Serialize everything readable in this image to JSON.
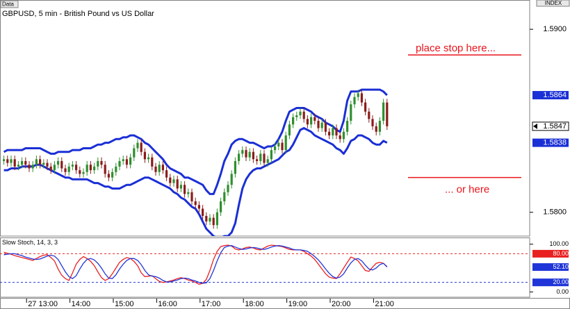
{
  "chart_data": [
    {
      "type": "candlestick",
      "label": "Data",
      "title": "GBPUSD, 5 min - British Pound vs US Dollar",
      "axis_label": "INDEX",
      "categories": [
        null,
        null,
        null,
        null,
        null,
        null,
        null,
        null,
        "27 13:00",
        null,
        null,
        null,
        null,
        null,
        null,
        null,
        null,
        null,
        null,
        null,
        "14:00",
        null,
        null,
        null,
        null,
        null,
        null,
        null,
        null,
        null,
        null,
        null,
        "15:00",
        null,
        null,
        null,
        null,
        null,
        null,
        null,
        null,
        null,
        null,
        null,
        "16:00",
        null,
        null,
        null,
        null,
        null,
        null,
        null,
        null,
        null,
        null,
        null,
        "17:00",
        null,
        null,
        null,
        null,
        null,
        null,
        null,
        null,
        null,
        null,
        null,
        "18:00",
        null,
        null,
        null,
        null,
        null,
        null,
        null,
        null,
        null,
        null,
        null,
        "19:00",
        null,
        null,
        null,
        null,
        null,
        null,
        null,
        null,
        null,
        null,
        null,
        "20:00",
        null,
        null,
        null,
        null,
        null,
        null,
        null,
        null,
        null,
        null,
        null,
        "21:00",
        null,
        null
      ],
      "open": [
        1.5828,
        1.5829,
        1.5827,
        1.5829,
        1.5825,
        1.5826,
        1.5828,
        1.5826,
        1.5824,
        1.5826,
        1.5829,
        1.5826,
        1.5827,
        1.5825,
        1.5823,
        1.5826,
        1.5828,
        1.5824,
        1.5822,
        1.5825,
        1.5826,
        1.5823,
        1.5821,
        1.5822,
        1.5826,
        1.5823,
        1.5825,
        1.5828,
        1.5826,
        1.5821,
        1.5819,
        1.5822,
        1.5825,
        1.5828,
        1.5829,
        1.5826,
        1.583,
        1.5835,
        1.5838,
        1.5833,
        1.5829,
        1.583,
        1.5825,
        1.5822,
        1.5826,
        1.5823,
        1.5819,
        1.5816,
        1.5818,
        1.5813,
        1.5815,
        1.581,
        1.5811,
        1.5806,
        1.5804,
        1.5802,
        1.5798,
        1.5795,
        1.5797,
        1.5793,
        1.58,
        1.5806,
        1.5811,
        1.5815,
        1.5821,
        1.5828,
        1.5832,
        1.5834,
        1.583,
        1.5833,
        1.5829,
        1.5828,
        1.5832,
        1.5827,
        1.5829,
        1.5834,
        1.5836,
        1.5838,
        1.5834,
        1.5842,
        1.5848,
        1.5852,
        1.5853,
        1.5855,
        1.5851,
        1.5848,
        1.5852,
        1.585,
        1.5846,
        1.5849,
        1.5844,
        1.5842,
        1.5846,
        1.5842,
        1.584,
        1.5844,
        1.585,
        1.5859,
        1.5863,
        1.5865,
        1.586,
        1.5855,
        1.5851,
        1.5847,
        1.5844,
        1.585,
        1.586
      ],
      "high": [
        1.5831,
        1.5831,
        1.5831,
        1.5831,
        1.5828,
        1.583,
        1.583,
        1.5828,
        1.5828,
        1.5831,
        1.5831,
        1.5829,
        1.5829,
        1.5827,
        1.5828,
        1.583,
        1.583,
        1.5826,
        1.5827,
        1.5828,
        1.5828,
        1.5825,
        1.5824,
        1.5828,
        1.5828,
        1.5827,
        1.583,
        1.583,
        1.5828,
        1.5823,
        1.5824,
        1.5827,
        1.583,
        1.5831,
        1.5831,
        1.5832,
        1.5837,
        1.584,
        1.584,
        1.5835,
        1.5832,
        1.5832,
        1.5827,
        1.5828,
        1.5828,
        1.5825,
        1.5821,
        1.582,
        1.582,
        1.5817,
        1.5817,
        1.5813,
        1.5813,
        1.5808,
        1.5806,
        1.5804,
        1.58,
        1.5799,
        1.5799,
        1.5802,
        1.5808,
        1.5813,
        1.5817,
        1.5823,
        1.583,
        1.5834,
        1.5836,
        1.5836,
        1.5835,
        1.5835,
        1.5831,
        1.5834,
        1.5834,
        1.5831,
        1.5836,
        1.5838,
        1.584,
        1.584,
        1.5844,
        1.585,
        1.5854,
        1.5855,
        1.5857,
        1.5857,
        1.5853,
        1.5854,
        1.5854,
        1.5852,
        1.5851,
        1.5851,
        1.5846,
        1.5848,
        1.5848,
        1.5844,
        1.5846,
        1.5852,
        1.5861,
        1.5865,
        1.5867,
        1.5867,
        1.5862,
        1.5857,
        1.5853,
        1.5849,
        1.5852,
        1.5862,
        1.5862
      ],
      "low": [
        1.5826,
        1.5825,
        1.5825,
        1.5823,
        1.5823,
        1.5824,
        1.5824,
        1.5822,
        1.5822,
        1.5824,
        1.5824,
        1.5824,
        1.5823,
        1.5821,
        1.5821,
        1.5824,
        1.5822,
        1.582,
        1.582,
        1.5823,
        1.5821,
        1.5819,
        1.5819,
        1.582,
        1.5821,
        1.5821,
        1.5823,
        1.5824,
        1.5819,
        1.5817,
        1.5817,
        1.582,
        1.5823,
        1.5826,
        1.5824,
        1.5824,
        1.5828,
        1.5833,
        1.5831,
        1.5827,
        1.5827,
        1.5823,
        1.582,
        1.582,
        1.5821,
        1.5817,
        1.5814,
        1.5814,
        1.5811,
        1.5811,
        1.5808,
        1.5808,
        1.5804,
        1.5802,
        1.58,
        1.5796,
        1.5793,
        1.5793,
        1.5791,
        1.5791,
        1.5798,
        1.5804,
        1.5809,
        1.5813,
        1.5819,
        1.5826,
        1.583,
        1.5828,
        1.5828,
        1.5827,
        1.5826,
        1.5826,
        1.5825,
        1.5825,
        1.5827,
        1.5832,
        1.5834,
        1.5832,
        1.5832,
        1.584,
        1.5846,
        1.585,
        1.5851,
        1.5849,
        1.5846,
        1.5846,
        1.5848,
        1.5844,
        1.5844,
        1.5842,
        1.584,
        1.584,
        1.584,
        1.5838,
        1.5838,
        1.5842,
        1.5848,
        1.5857,
        1.5861,
        1.5858,
        1.5853,
        1.5849,
        1.5845,
        1.5842,
        1.5842,
        1.5848,
        1.5845
      ],
      "close": [
        1.5829,
        1.5827,
        1.5829,
        1.5825,
        1.5826,
        1.5828,
        1.5826,
        1.5824,
        1.5826,
        1.5829,
        1.5826,
        1.5827,
        1.5825,
        1.5823,
        1.5826,
        1.5828,
        1.5824,
        1.5822,
        1.5825,
        1.5826,
        1.5823,
        1.5821,
        1.5822,
        1.5826,
        1.5823,
        1.5825,
        1.5828,
        1.5826,
        1.5821,
        1.5819,
        1.5822,
        1.5825,
        1.5828,
        1.5829,
        1.5826,
        1.583,
        1.5835,
        1.5838,
        1.5833,
        1.5829,
        1.583,
        1.5825,
        1.5822,
        1.5826,
        1.5823,
        1.5819,
        1.5816,
        1.5818,
        1.5813,
        1.5815,
        1.581,
        1.5811,
        1.5806,
        1.5804,
        1.5802,
        1.5798,
        1.5795,
        1.5797,
        1.5793,
        1.58,
        1.5806,
        1.5811,
        1.5815,
        1.5821,
        1.5828,
        1.5832,
        1.5834,
        1.583,
        1.5833,
        1.5829,
        1.5828,
        1.5832,
        1.5827,
        1.5829,
        1.5834,
        1.5836,
        1.5838,
        1.5834,
        1.5842,
        1.5848,
        1.5852,
        1.5853,
        1.5855,
        1.5851,
        1.5848,
        1.5852,
        1.585,
        1.5846,
        1.5849,
        1.5844,
        1.5842,
        1.5846,
        1.5842,
        1.584,
        1.5844,
        1.585,
        1.5859,
        1.5863,
        1.5865,
        1.586,
        1.5855,
        1.5851,
        1.5847,
        1.5844,
        1.585,
        1.586,
        1.5847
      ],
      "up_color": "#2f8f2f",
      "down_color": "#8a1c1c",
      "bands": {
        "color": "#1a2fd6",
        "upper": [
          1.5833,
          1.5834,
          1.5834,
          1.5834,
          1.5834,
          1.5834,
          1.5835,
          1.5835,
          1.5835,
          1.5835,
          1.5835,
          1.5834,
          1.5833,
          1.5832,
          1.5832,
          1.5833,
          1.5833,
          1.5833,
          1.5833,
          1.5834,
          1.5834,
          1.5834,
          1.5835,
          1.5835,
          1.5835,
          1.5836,
          1.5837,
          1.5837,
          1.5838,
          1.5838,
          1.5839,
          1.584,
          1.584,
          1.5841,
          1.5841,
          1.5842,
          1.5842,
          1.5841,
          1.584,
          1.5838,
          1.5837,
          1.5835,
          1.5833,
          1.5831,
          1.5829,
          1.5826,
          1.5824,
          1.5823,
          1.5822,
          1.5821,
          1.5819,
          1.5819,
          1.5818,
          1.5817,
          1.5816,
          1.5815,
          1.5812,
          1.581,
          1.581,
          1.5815,
          1.5821,
          1.5828,
          1.5832,
          1.5837,
          1.5839,
          1.584,
          1.584,
          1.5839,
          1.5838,
          1.5838,
          1.5837,
          1.5836,
          1.5835,
          1.5836,
          1.5836,
          1.5837,
          1.584,
          1.5844,
          1.585,
          1.5855,
          1.5856,
          1.5857,
          1.5857,
          1.5857,
          1.5856,
          1.5855,
          1.5853,
          1.5852,
          1.5851,
          1.5849,
          1.5848,
          1.5847,
          1.5845,
          1.5844,
          1.585,
          1.5861,
          1.5866,
          1.5866,
          1.5866,
          1.5867,
          1.5867,
          1.5867,
          1.5867,
          1.5867,
          1.5867,
          1.5866,
          1.5864
        ],
        "lower": [
          1.5823,
          1.5823,
          1.5824,
          1.5824,
          1.5824,
          1.5825,
          1.5825,
          1.5825,
          1.5825,
          1.5826,
          1.5826,
          1.5825,
          1.5824,
          1.5823,
          1.5822,
          1.5821,
          1.582,
          1.5819,
          1.5819,
          1.5818,
          1.5818,
          1.5818,
          1.5818,
          1.5818,
          1.5817,
          1.5816,
          1.5816,
          1.5815,
          1.5814,
          1.5814,
          1.5813,
          1.5813,
          1.5813,
          1.5814,
          1.5815,
          1.5815,
          1.5816,
          1.5817,
          1.5818,
          1.5819,
          1.5819,
          1.5818,
          1.5817,
          1.5816,
          1.5815,
          1.5814,
          1.5813,
          1.5811,
          1.581,
          1.5808,
          1.5807,
          1.5805,
          1.5803,
          1.5802,
          1.5799,
          1.5795,
          1.5791,
          1.5789,
          1.5787,
          1.5786,
          1.5786,
          1.5787,
          1.5787,
          1.5789,
          1.5794,
          1.5804,
          1.5813,
          1.5818,
          1.5821,
          1.5823,
          1.5824,
          1.5824,
          1.5825,
          1.5826,
          1.5827,
          1.5828,
          1.5829,
          1.5831,
          1.5833,
          1.5834,
          1.5837,
          1.5841,
          1.5845,
          1.5846,
          1.5845,
          1.5844,
          1.5842,
          1.5841,
          1.584,
          1.5839,
          1.5838,
          1.5837,
          1.5835,
          1.5834,
          1.5832,
          1.5835,
          1.5839,
          1.584,
          1.5842,
          1.5842,
          1.5841,
          1.584,
          1.5838,
          1.5837,
          1.5837,
          1.5839,
          1.5838
        ]
      },
      "ylim": [
        1.5787,
        1.5916
      ],
      "yticks": [
        {
          "value": 1.59,
          "label": "1.5900"
        },
        {
          "value": 1.58,
          "label": "1.5800"
        }
      ],
      "annotations": [
        {
          "text": "place stop here...",
          "value": 1.5886,
          "color": "#e8141c"
        },
        {
          "text": "... or here",
          "value": 1.5819,
          "color": "#e8141c"
        }
      ]
    },
    {
      "type": "line",
      "title": "Slow Stoch, 14, 3, 3",
      "series": [
        {
          "color": "#e82020",
          "values": [
            83,
            81,
            79,
            76,
            74,
            72,
            70,
            68,
            66,
            70,
            74,
            77,
            78,
            72,
            65,
            48,
            35,
            28,
            24,
            40,
            58,
            68,
            74,
            70,
            64,
            55,
            42,
            30,
            24,
            28,
            38,
            50,
            62,
            68,
            72,
            70,
            64,
            55,
            40,
            32,
            33,
            34,
            28,
            22,
            20,
            21,
            23,
            25,
            28,
            30,
            28,
            25,
            23,
            20,
            16,
            18,
            26,
            45,
            68,
            85,
            95,
            97,
            98,
            96,
            90,
            88,
            90,
            93,
            94,
            92,
            89,
            88,
            92,
            96,
            98,
            97,
            96,
            95,
            92,
            89,
            88,
            88,
            88,
            85,
            80,
            75,
            68,
            58,
            48,
            38,
            31,
            29,
            28,
            38,
            50,
            62,
            73,
            70,
            65,
            55,
            45,
            43,
            52,
            60,
            62,
            60,
            53
          ]
        },
        {
          "color": "#2035d8",
          "values": [
            78,
            79,
            80,
            80,
            78,
            76,
            73,
            71,
            69,
            68,
            69,
            72,
            75,
            77,
            75,
            68,
            55,
            42,
            32,
            28,
            34,
            48,
            60,
            68,
            70,
            67,
            60,
            50,
            38,
            29,
            28,
            36,
            48,
            58,
            66,
            70,
            70,
            66,
            57,
            45,
            36,
            33,
            32,
            29,
            24,
            21,
            21,
            23,
            25,
            28,
            29,
            28,
            25,
            23,
            20,
            18,
            19,
            28,
            45,
            65,
            82,
            93,
            96,
            97,
            94,
            91,
            89,
            90,
            92,
            93,
            92,
            90,
            89,
            91,
            94,
            96,
            97,
            96,
            94,
            92,
            89,
            88,
            88,
            87,
            85,
            80,
            74,
            67,
            58,
            48,
            39,
            32,
            29,
            31,
            38,
            50,
            61,
            68,
            70,
            65,
            56,
            48,
            46,
            50,
            57,
            60,
            52.1
          ],
          "value_labels": [
            null,
            null,
            null,
            null,
            null,
            null,
            null,
            null,
            null,
            null,
            null,
            null,
            null,
            null,
            null,
            null,
            null,
            null,
            null,
            null,
            null,
            null,
            null,
            null,
            null,
            null,
            null,
            null,
            null,
            null,
            null,
            null,
            null,
            null,
            null,
            null,
            null,
            null,
            null,
            null,
            null,
            null,
            null,
            null,
            null,
            null,
            null,
            null,
            null,
            null,
            null,
            null,
            null,
            null,
            null,
            null,
            null,
            null,
            null,
            null,
            null,
            null,
            null,
            null,
            null,
            null,
            null,
            null,
            null,
            null,
            null,
            null,
            null,
            null,
            null,
            null,
            null,
            null,
            null,
            null,
            null,
            null,
            null,
            null,
            null,
            null,
            null,
            null,
            null,
            null,
            null,
            null,
            null,
            null,
            null,
            null,
            null,
            null,
            null,
            null,
            null,
            null,
            null,
            null,
            null,
            null,
            "52.10"
          ]
        }
      ],
      "ylim": [
        -11,
        114
      ],
      "yticks": [
        {
          "value": 100,
          "label": "100.00"
        },
        {
          "value": 0,
          "label": "0.00"
        }
      ],
      "reference_lines": [
        {
          "value": 80,
          "label": "80.00",
          "color": "#e82020"
        },
        {
          "value": 20,
          "label": "20.00",
          "color": "#2035d8"
        }
      ]
    }
  ]
}
